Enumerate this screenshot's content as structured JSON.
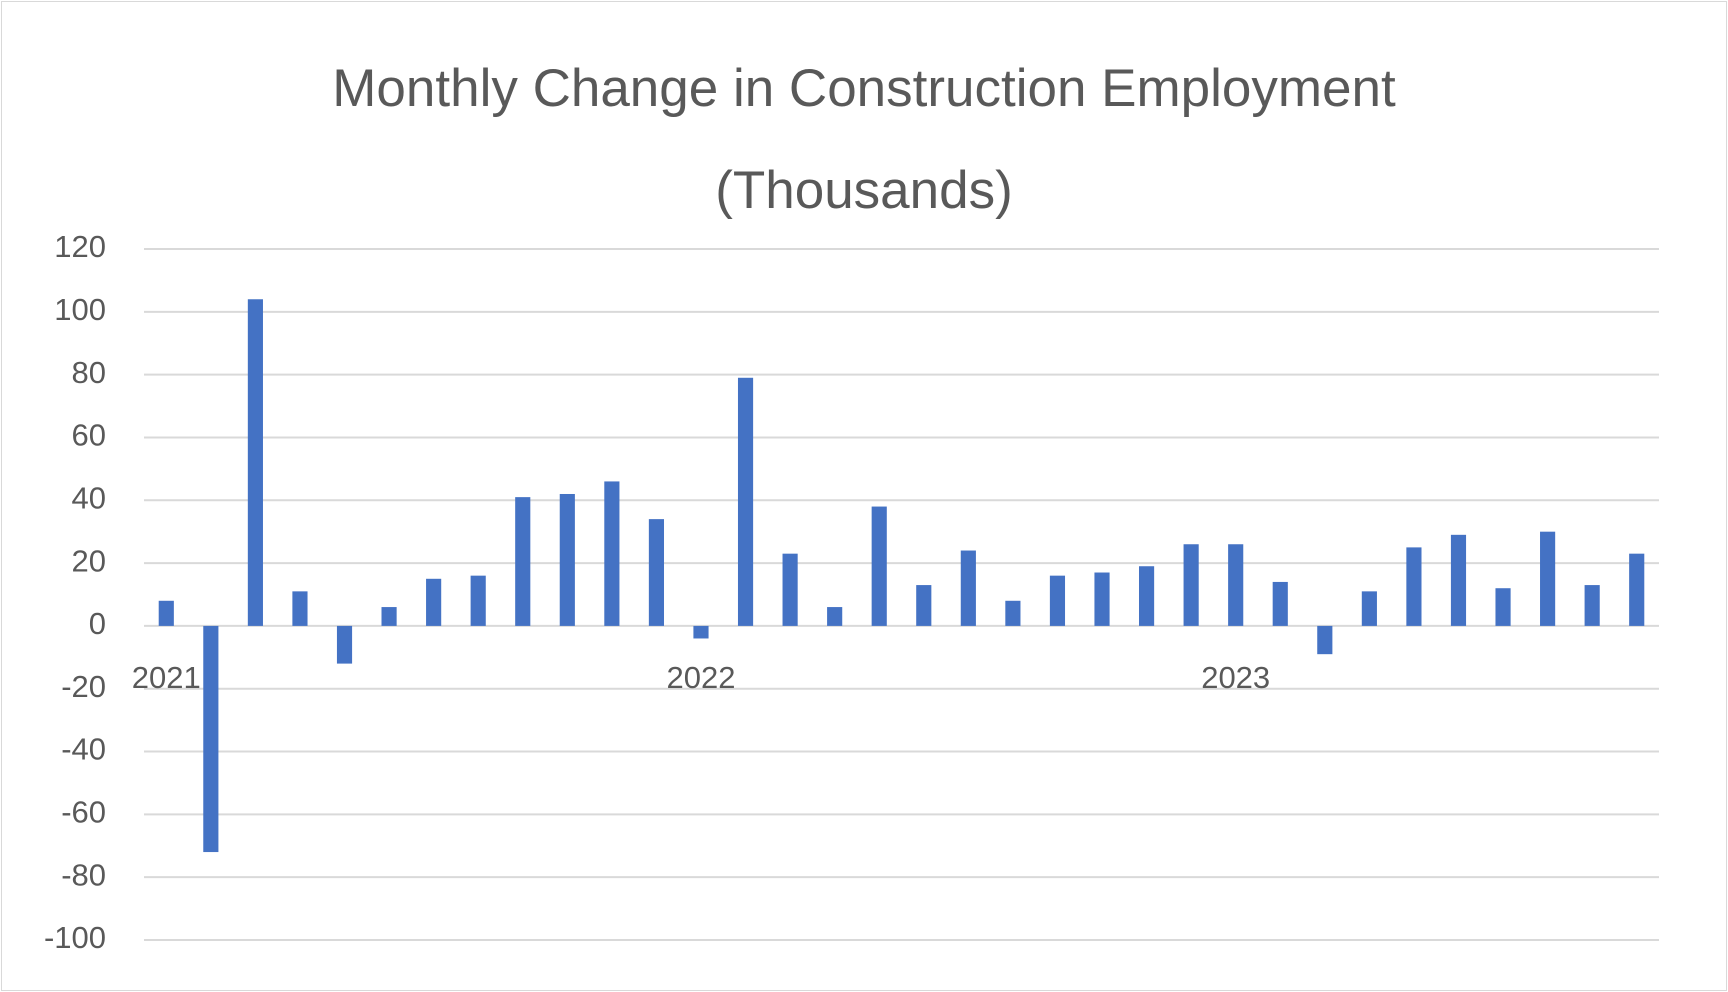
{
  "chart_data": {
    "type": "bar",
    "title": "Monthly Change in Construction Employment (Thousands)",
    "categories": [
      "2021",
      null,
      null,
      null,
      null,
      null,
      null,
      null,
      null,
      null,
      null,
      null,
      "2022",
      null,
      null,
      null,
      null,
      null,
      null,
      null,
      null,
      null,
      null,
      null,
      "2023",
      null,
      null,
      null,
      null,
      null,
      null,
      null,
      null,
      null
    ],
    "values": [
      8,
      -72,
      104,
      11,
      -12,
      6,
      15,
      16,
      41,
      42,
      46,
      34,
      -4,
      79,
      23,
      6,
      38,
      13,
      24,
      8,
      16,
      17,
      19,
      26,
      26,
      14,
      -9,
      11,
      25,
      29,
      12,
      30,
      13,
      23
    ],
    "color": "#4472c4",
    "ylim": [
      -100,
      120
    ],
    "yticks": [
      -100,
      -80,
      -60,
      -40,
      -20,
      0,
      20,
      40,
      60,
      80,
      100,
      120
    ],
    "grid": true
  }
}
